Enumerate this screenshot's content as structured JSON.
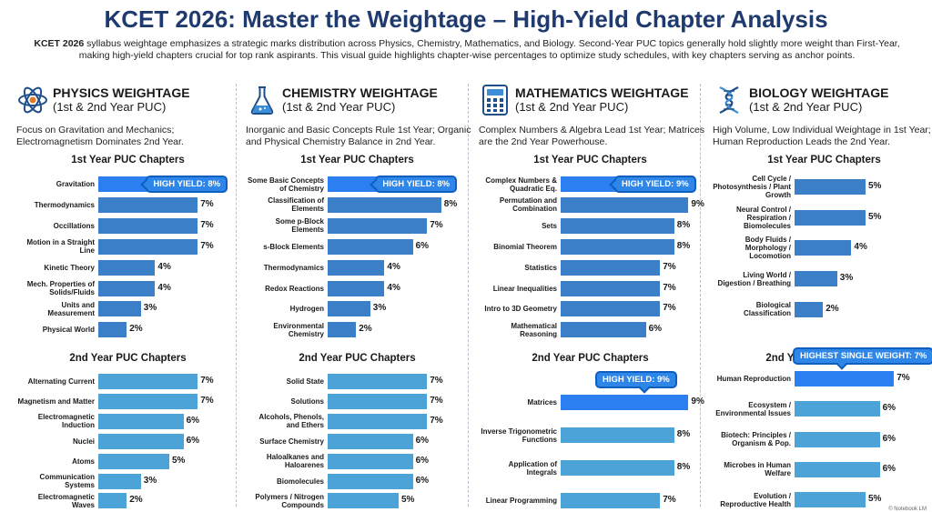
{
  "page": {
    "title": "KCET 2026: Master the Weightage – High-Yield Chapter Analysis",
    "intro_bold": "KCET 2026",
    "intro_rest": " syllabus weightage emphasizes a strategic marks distribution across Physics, Chemistry, Mathematics, and Biology. Second-Year PUC topics generally hold slightly more weight than First-Year, making high-yield chapters crucial for top rank aspirants. This visual guide highlights chapter-wise percentages to optimize study schedules, with key chapters serving as anchor points.",
    "footnote": "© Notebook LM"
  },
  "chart_data": [
    {
      "type": "bar",
      "subject": "PHYSICS WEIGHTAGE",
      "subtitle": "(1st & 2nd Year PUC)",
      "icon": "atom-icon",
      "description": "Focus on Gravitation and Mechanics; Electromagnetism Dominates 2nd Year.",
      "units": "%",
      "sections": [
        {
          "title": "1st Year PUC Chapters",
          "categories": [
            "Gravitation",
            "Thermodynamics",
            "Occillations",
            "Motion in a Straight Line",
            "Kinetic Theory",
            "Mech. Properties of Solids/Fluids",
            "Units and Measurement",
            "Physical World"
          ],
          "values": [
            8,
            7,
            7,
            7,
            4,
            4,
            3,
            2
          ],
          "highlight_index": 0,
          "badge": "HIGH YIELD: 8%"
        },
        {
          "title": "2nd Year PUC Chapters",
          "categories": [
            "Alternating Current",
            "Magnetism and Matter",
            "Electromagnetic Induction",
            "Nuclei",
            "Atoms",
            "Communication Systems",
            "Electromagnetic Waves"
          ],
          "values": [
            7,
            7,
            6,
            6,
            5,
            3,
            2
          ],
          "highlight_index": null,
          "badge": null
        }
      ]
    },
    {
      "type": "bar",
      "subject": "CHEMISTRY WEIGHTAGE",
      "subtitle": "(1st & 2nd Year PUC)",
      "icon": "flask-icon",
      "description": "Inorganic and Basic Concepts Rule 1st Year; Organic and Physical Chemistry Balance in 2nd Year.",
      "units": "%",
      "sections": [
        {
          "title": "1st Year PUC Chapters",
          "categories": [
            "Some Basic Concepts of Chemistry",
            "Classification of Elements",
            "Some p-Block Elements",
            "s-Block Elements",
            "Thermodynamics",
            "Redox Reactions",
            "Hydrogen",
            "Environmental Chemistry"
          ],
          "values": [
            8,
            8,
            7,
            6,
            4,
            4,
            3,
            2
          ],
          "highlight_index": 0,
          "badge": "HIGH YIELD: 8%"
        },
        {
          "title": "2nd Year PUC Chapters",
          "categories": [
            "Solid State",
            "Solutions",
            "Alcohols, Phenols, and Ethers",
            "Surface Chemistry",
            "Haloalkanes and Haloarenes",
            "Biomolecules",
            "Polymers / Nitrogen Compounds"
          ],
          "values": [
            7,
            7,
            7,
            6,
            6,
            6,
            5
          ],
          "highlight_index": null,
          "badge": null
        }
      ]
    },
    {
      "type": "bar",
      "subject": "MATHEMATICS WEIGHTAGE",
      "subtitle": "(1st & 2nd Year PUC)",
      "icon": "calculator-icon",
      "description": "Complex Numbers & Algebra Lead 1st Year; Matrices are the 2nd Year Powerhouse.",
      "units": "%",
      "sections": [
        {
          "title": "1st Year PUC Chapters",
          "categories": [
            "Complex Numbers & Quadratic Eq.",
            "Permutation and Combination",
            "Sets",
            "Binomial Theorem",
            "Statistics",
            "Linear Inequalities",
            "Intro to 3D Geometry",
            "Mathematical Reasoning"
          ],
          "values": [
            9,
            9,
            8,
            8,
            7,
            7,
            7,
            6
          ],
          "highlight_index": 0,
          "badge": "HIGH YIELD: 9%"
        },
        {
          "title": "2nd Year PUC Chapters",
          "categories": [
            "Matrices",
            "Inverse Trigonometric Functions",
            "Application of Integrals",
            "Linear Programming"
          ],
          "values": [
            9,
            8,
            8,
            7
          ],
          "highlight_index": 0,
          "badge": "HIGH YIELD: 9%"
        }
      ]
    },
    {
      "type": "bar",
      "subject": "BIOLOGY WEIGHTAGE",
      "subtitle": "(1st & 2nd Year PUC)",
      "icon": "dna-icon",
      "description": "High Volume, Low Individual Weightage in 1st Year; Human Reproduction Leads the 2nd Year.",
      "units": "%",
      "sections": [
        {
          "title": "1st Year PUC Chapters",
          "categories": [
            "Cell Cycle / Photosynthesis / Plant Growth",
            "Neural Control / Respiration / Biomolecules",
            "Body Fluids / Morphology / Locomotion",
            "Living World / Digestion / Breathing",
            "Biological Classification"
          ],
          "values": [
            5,
            5,
            4,
            3,
            2
          ],
          "highlight_index": null,
          "badge": null
        },
        {
          "title": "2nd Year PUC Chapters",
          "categories": [
            "Human Reproduction",
            "Ecosystem / Environmental Issues",
            "Biotech: Principles / Organism & Pop.",
            "Microbes in Human Welfare",
            "Evolution / Reproductive Health"
          ],
          "values": [
            7,
            6,
            6,
            6,
            5
          ],
          "highlight_index": 0,
          "badge": "HIGHEST SINGLE WEIGHT: 7%"
        }
      ]
    }
  ]
}
